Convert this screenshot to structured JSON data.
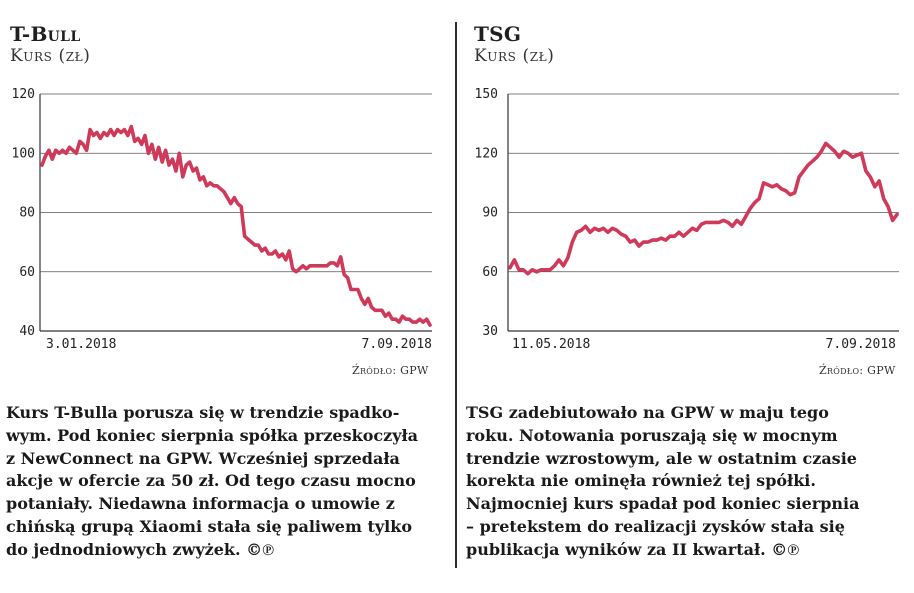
{
  "charts": [
    {
      "title": "T-Bull",
      "subtitle": "Kurs (zł)",
      "source": "Źródło: GPW",
      "description_lines": [
        "Kurs T-Bulla porusza się w trendzie spadko-",
        "wym. Pod koniec sierpnia  spółka przeskoczyła",
        "z NewConnect na GPW. Wcześniej sprzedała",
        "akcje w ofercie za 50 zł. Od tego czasu mocno",
        "potaniały.  Niedawna informacja o umowie z",
        "chińską grupą Xiaomi stała się paliwem tylko",
        "do jednodniowych zwyżek. ©℗"
      ]
    },
    {
      "title": "TSG",
      "subtitle": "Kurs (zł)",
      "source": "Źródło: GPW",
      "description_lines": [
        "TSG zadebiutowało na GPW w maju tego",
        "roku. Notowania poruszają się w mocnym",
        "trendzie wzrostowym, ale w ostatnim czasie",
        "korekta nie ominęła również tej spółki.",
        "Najmocniej kurs spadał pod koniec sierpnia",
        "– pretekstem do realizacji zysków stała się",
        "publikacja wyników za II kwartał. ©℗"
      ]
    }
  ],
  "chart_data": [
    {
      "type": "line",
      "title": "T-Bull",
      "ylabel": "Kurs (zł)",
      "ylim": [
        40,
        120
      ],
      "yticks": [
        40,
        60,
        80,
        100,
        120
      ],
      "grid": true,
      "x_start_label": "3.01.2018",
      "x_end_label": "7.09.2018",
      "series": [
        {
          "name": "T-Bull",
          "color": "#d03a5a",
          "values": [
            96,
            99,
            101,
            98,
            101,
            100,
            101,
            100,
            102,
            101,
            100,
            104,
            103,
            101,
            108,
            106,
            107,
            105,
            107,
            106,
            108,
            106,
            108,
            107,
            108,
            106,
            109,
            104,
            105,
            103,
            106,
            100,
            103,
            98,
            102,
            97,
            101,
            96,
            98,
            94,
            100,
            92,
            96,
            97,
            94,
            95,
            91,
            92,
            89,
            90,
            89,
            89,
            88,
            87,
            85,
            83,
            85,
            83,
            82,
            72,
            71,
            70,
            69,
            69,
            67,
            68,
            66,
            66,
            67,
            65,
            66,
            64,
            67,
            61,
            60,
            61,
            62,
            61,
            62,
            62,
            62,
            62,
            62,
            62,
            63,
            63,
            62,
            65,
            59,
            58,
            54,
            54,
            54,
            51,
            49,
            51,
            48,
            47,
            47,
            47,
            45,
            46,
            44,
            44,
            43,
            45,
            44,
            44,
            43,
            43,
            44,
            43,
            44,
            42
          ]
        }
      ]
    },
    {
      "type": "line",
      "title": "TSG",
      "ylabel": "Kurs (zł)",
      "ylim": [
        30,
        150
      ],
      "yticks": [
        30,
        60,
        90,
        120,
        150
      ],
      "grid": true,
      "x_start_label": "11.05.2018",
      "x_end_label": "7.09.2018",
      "series": [
        {
          "name": "TSG",
          "color": "#d03a5a",
          "values": [
            62,
            66,
            61,
            61,
            59,
            61,
            60,
            61,
            61,
            61,
            63,
            66,
            63,
            67,
            75,
            80,
            81,
            83,
            80,
            82,
            81,
            82,
            80,
            82,
            81,
            79,
            78,
            75,
            76,
            73,
            75,
            75,
            76,
            76,
            77,
            76,
            78,
            78,
            80,
            78,
            80,
            82,
            81,
            84,
            85,
            85,
            85,
            85,
            86,
            85,
            83,
            86,
            84,
            88,
            92,
            95,
            97,
            105,
            104,
            103,
            104,
            102,
            101,
            99,
            100,
            108,
            111,
            114,
            116,
            118,
            121,
            125,
            123,
            121,
            118,
            121,
            120,
            118,
            119,
            120,
            111,
            108,
            103,
            106,
            97,
            93,
            86,
            89
          ]
        }
      ]
    }
  ]
}
